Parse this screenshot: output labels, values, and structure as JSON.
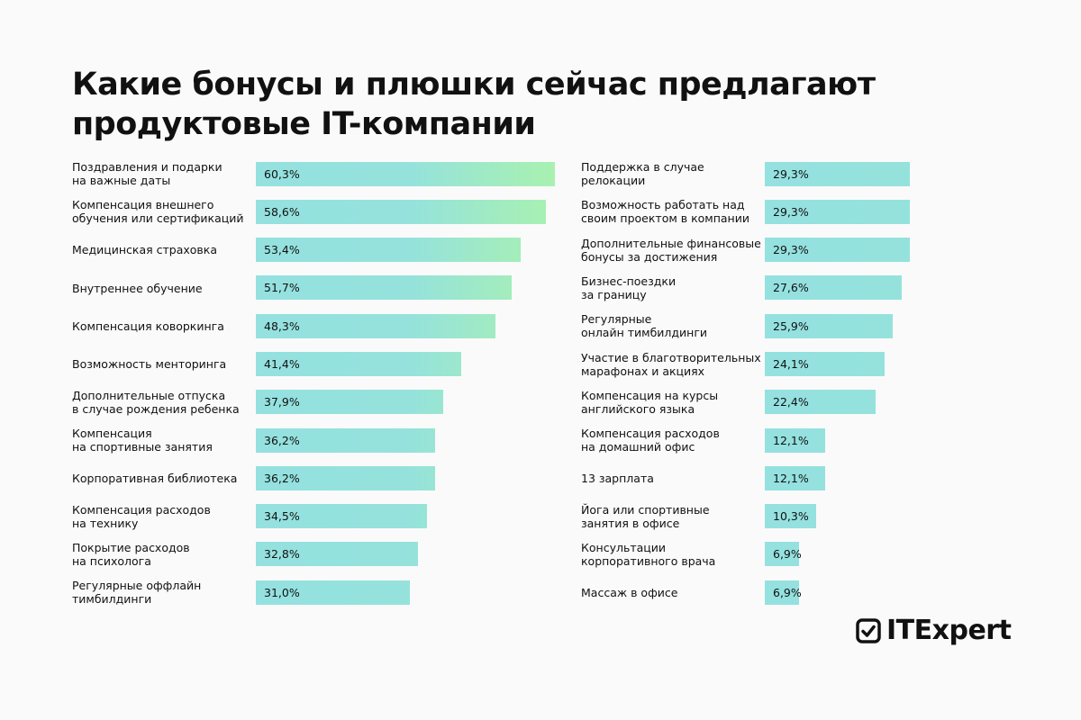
{
  "chart_data": {
    "type": "bar",
    "orientation": "horizontal",
    "title": "Какие бонусы и плюшки сейчас предлагают\nпродуктовые IT-компании",
    "unit": "%",
    "colors": {
      "bar_start": "#94e1e0",
      "bar_end": "#a9f1b0"
    },
    "left": [
      {
        "label": "Поздравления и подарки\nна важные даты",
        "value": 60.3,
        "text": "60,3%"
      },
      {
        "label": "Компенсация внешнего\nобучения или сертификаций",
        "value": 58.6,
        "text": "58,6%"
      },
      {
        "label": "Медицинская страховка",
        "value": 53.4,
        "text": "53,4%"
      },
      {
        "label": "Внутреннее обучение",
        "value": 51.7,
        "text": "51,7%"
      },
      {
        "label": "Компенсация коворкинга",
        "value": 48.3,
        "text": "48,3%"
      },
      {
        "label": "Возможность менторинга",
        "value": 41.4,
        "text": "41,4%"
      },
      {
        "label": "Дополнительные отпуска\nв случае рождения ребенка",
        "value": 37.9,
        "text": "37,9%"
      },
      {
        "label": "Компенсация\nна спортивные занятия",
        "value": 36.2,
        "text": "36,2%"
      },
      {
        "label": "Корпоративная библиотека",
        "value": 36.2,
        "text": "36,2%"
      },
      {
        "label": "Компенсация расходов\nна технику",
        "value": 34.5,
        "text": "34,5%"
      },
      {
        "label": "Покрытие расходов\nна психолога",
        "value": 32.8,
        "text": "32,8%"
      },
      {
        "label": "Регулярные оффлайн\nтимбилдинги",
        "value": 31.0,
        "text": "31,0%"
      }
    ],
    "right": [
      {
        "label": "Поддержка в случае\nрелокации",
        "value": 29.3,
        "text": "29,3%"
      },
      {
        "label": "Возможность работать над\nсвоим проектом в компании",
        "value": 29.3,
        "text": "29,3%"
      },
      {
        "label": "Дополнительные финансовые\nбонусы за достижения",
        "value": 29.3,
        "text": "29,3%"
      },
      {
        "label": "Бизнес-поездки\nза границу",
        "value": 27.6,
        "text": "27,6%"
      },
      {
        "label": "Регулярные\nонлайн тимбилдинги",
        "value": 25.9,
        "text": "25,9%"
      },
      {
        "label": "Участие в благотворительных\nмарафонах и акциях",
        "value": 24.1,
        "text": "24,1%"
      },
      {
        "label": "Компенсация на курсы\nанглийского языка",
        "value": 22.4,
        "text": "22,4%"
      },
      {
        "label": "Компенсация расходов\nна домашний офис",
        "value": 12.1,
        "text": "12,1%"
      },
      {
        "label": "13 зарплата",
        "value": 12.1,
        "text": "12,1%"
      },
      {
        "label": "Йога или спортивные\nзанятия в офисе",
        "value": 10.3,
        "text": "10,3%"
      },
      {
        "label": "Консультации\nкорпоративного врача",
        "value": 6.9,
        "text": "6,9%"
      },
      {
        "label": "Массаж в офисе",
        "value": 6.9,
        "text": "6,9%"
      }
    ]
  },
  "logo": {
    "text": "ITExpert",
    "icon": "checkbox-check-icon"
  }
}
